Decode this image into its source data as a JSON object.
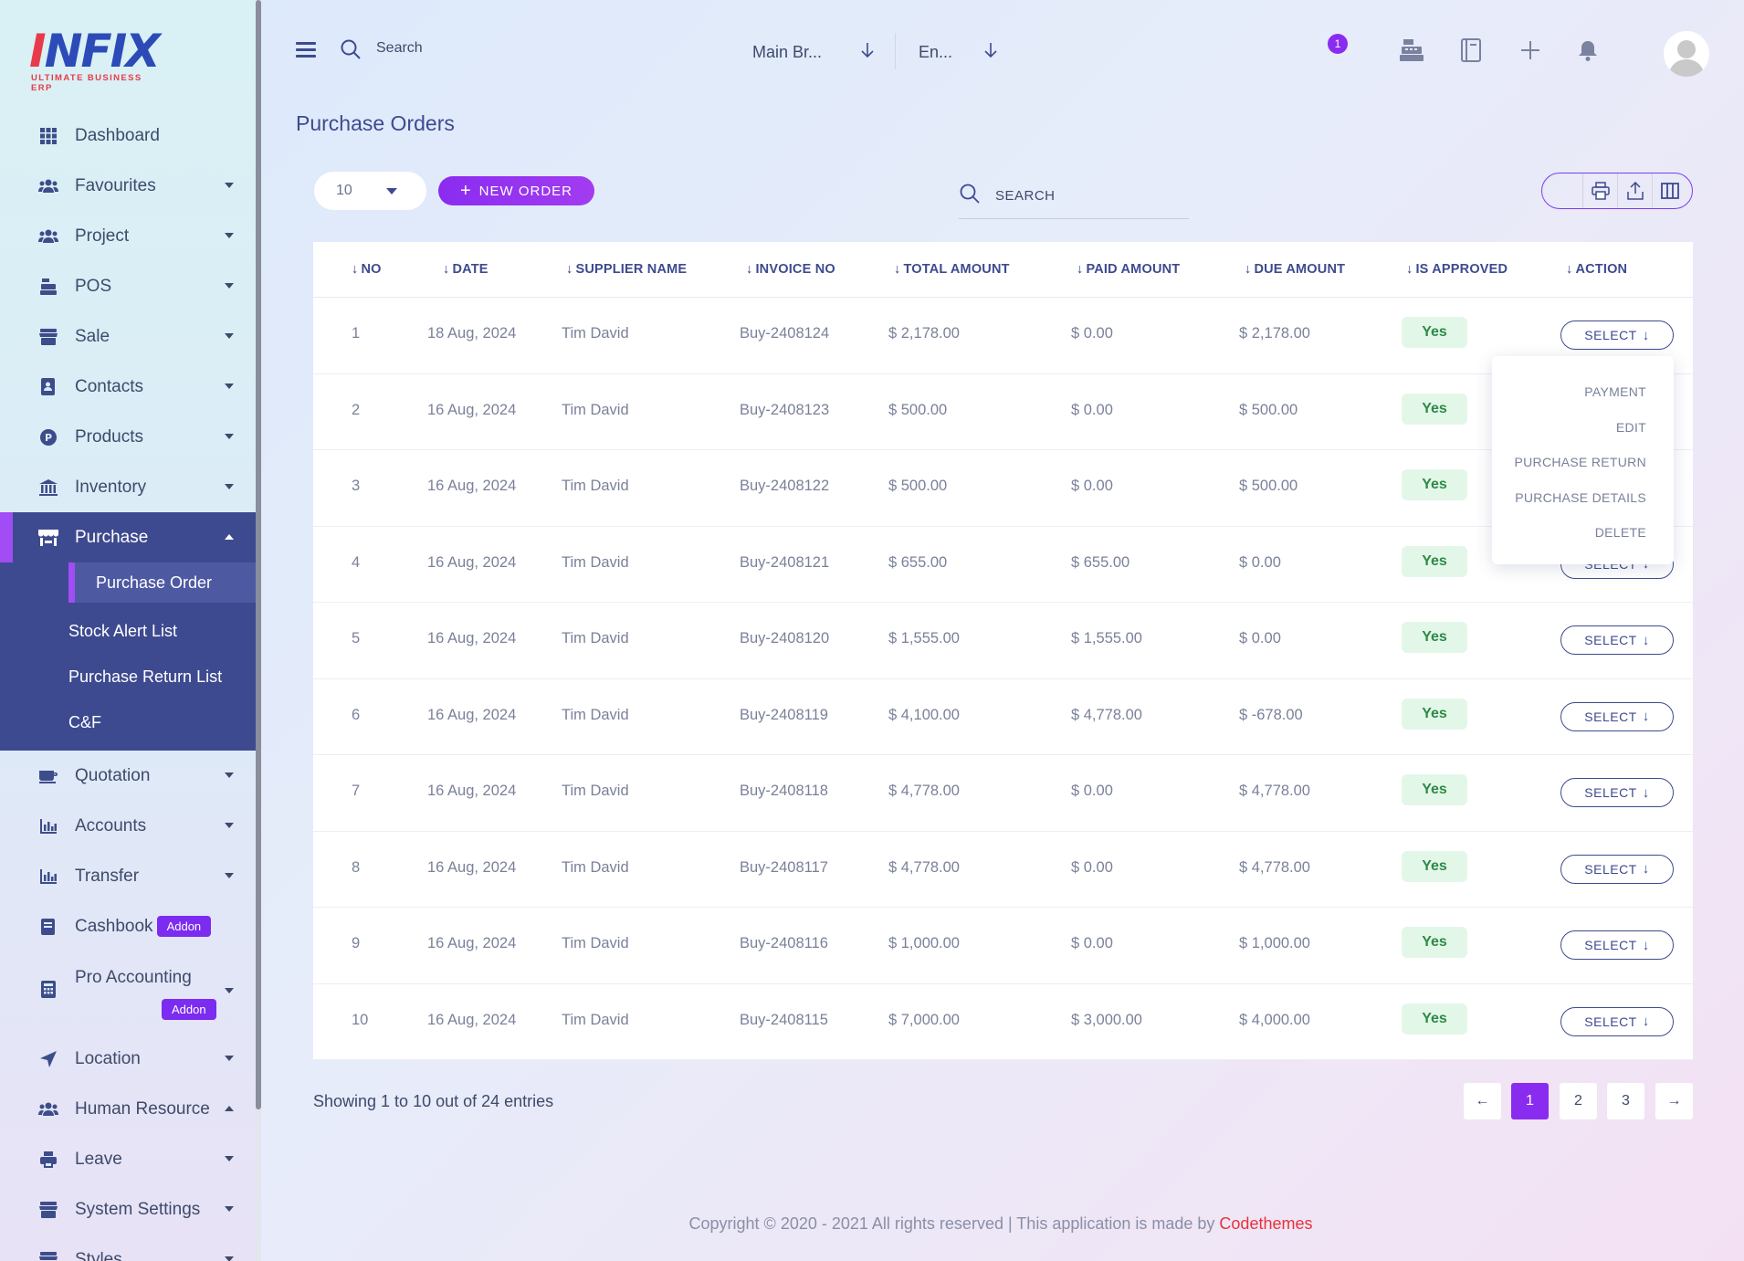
{
  "brand": {
    "logo_text_a": "I",
    "logo_text_b": "NFIX",
    "tagline": "ULTIMATE BUSINESS ERP"
  },
  "sidebar": {
    "items": [
      {
        "label": "Dashboard",
        "icon": "grid-icon"
      },
      {
        "label": "Favourites",
        "icon": "users-icon"
      },
      {
        "label": "Project",
        "icon": "users-icon"
      },
      {
        "label": "POS",
        "icon": "cash-register-icon"
      },
      {
        "label": "Sale",
        "icon": "store-icon"
      },
      {
        "label": "Contacts",
        "icon": "contact-book-icon"
      },
      {
        "label": "Products",
        "icon": "product-p-icon"
      },
      {
        "label": "Inventory",
        "icon": "warehouse-icon"
      },
      {
        "label": "Purchase",
        "icon": "shop-icon"
      },
      {
        "label": "Quotation",
        "icon": "quotation-icon"
      },
      {
        "label": "Accounts",
        "icon": "chart-icon"
      },
      {
        "label": "Transfer",
        "icon": "chart-icon"
      },
      {
        "label": "Cashbook",
        "icon": "book-icon",
        "badge": "Addon"
      },
      {
        "label": "Pro Accounting",
        "icon": "calculator-icon",
        "badge": "Addon"
      },
      {
        "label": "Location",
        "icon": "location-arrow-icon"
      },
      {
        "label": "Human Resource",
        "icon": "users-icon"
      },
      {
        "label": "Leave",
        "icon": "printer-icon"
      },
      {
        "label": "System Settings",
        "icon": "store-icon"
      },
      {
        "label": "Styles",
        "icon": "store-icon"
      }
    ],
    "purchase_sub": [
      "Purchase Order",
      "Stock Alert List",
      "Purchase Return List",
      "C&F"
    ]
  },
  "topbar": {
    "search_placeholder": "Search",
    "branch": "Main Br...",
    "language": "En...",
    "notification_count": "1"
  },
  "page": {
    "title": "Purchase Orders"
  },
  "toolbar": {
    "page_size": "10",
    "new_order_label": "NEW ORDER",
    "search_placeholder": "SEARCH"
  },
  "table": {
    "columns": [
      "NO",
      "DATE",
      "SUPPLIER NAME",
      "INVOICE NO",
      "TOTAL AMOUNT",
      "PAID AMOUNT",
      "DUE AMOUNT",
      "IS APPROVED",
      "ACTION"
    ],
    "select_label": "SELECT",
    "rows": [
      {
        "no": "1",
        "date": "18 Aug, 2024",
        "supplier": "Tim David",
        "invoice": "Buy-2408124",
        "total": "$ 2,178.00",
        "paid": "$ 0.00",
        "due": "$ 2,178.00",
        "approved": "Yes"
      },
      {
        "no": "2",
        "date": "16 Aug, 2024",
        "supplier": "Tim David",
        "invoice": "Buy-2408123",
        "total": "$ 500.00",
        "paid": "$ 0.00",
        "due": "$ 500.00",
        "approved": "Yes"
      },
      {
        "no": "3",
        "date": "16 Aug, 2024",
        "supplier": "Tim David",
        "invoice": "Buy-2408122",
        "total": "$ 500.00",
        "paid": "$ 0.00",
        "due": "$ 500.00",
        "approved": "Yes"
      },
      {
        "no": "4",
        "date": "16 Aug, 2024",
        "supplier": "Tim David",
        "invoice": "Buy-2408121",
        "total": "$ 655.00",
        "paid": "$ 655.00",
        "due": "$ 0.00",
        "approved": "Yes"
      },
      {
        "no": "5",
        "date": "16 Aug, 2024",
        "supplier": "Tim David",
        "invoice": "Buy-2408120",
        "total": "$ 1,555.00",
        "paid": "$ 1,555.00",
        "due": "$ 0.00",
        "approved": "Yes"
      },
      {
        "no": "6",
        "date": "16 Aug, 2024",
        "supplier": "Tim David",
        "invoice": "Buy-2408119",
        "total": "$ 4,100.00",
        "paid": "$ 4,778.00",
        "due": "$ -678.00",
        "approved": "Yes"
      },
      {
        "no": "7",
        "date": "16 Aug, 2024",
        "supplier": "Tim David",
        "invoice": "Buy-2408118",
        "total": "$ 4,778.00",
        "paid": "$ 0.00",
        "due": "$ 4,778.00",
        "approved": "Yes"
      },
      {
        "no": "8",
        "date": "16 Aug, 2024",
        "supplier": "Tim David",
        "invoice": "Buy-2408117",
        "total": "$ 4,778.00",
        "paid": "$ 0.00",
        "due": "$ 4,778.00",
        "approved": "Yes"
      },
      {
        "no": "9",
        "date": "16 Aug, 2024",
        "supplier": "Tim David",
        "invoice": "Buy-2408116",
        "total": "$ 1,000.00",
        "paid": "$ 0.00",
        "due": "$ 1,000.00",
        "approved": "Yes"
      },
      {
        "no": "10",
        "date": "16 Aug, 2024",
        "supplier": "Tim David",
        "invoice": "Buy-2408115",
        "total": "$ 7,000.00",
        "paid": "$ 3,000.00",
        "due": "$ 4,000.00",
        "approved": "Yes"
      }
    ]
  },
  "action_menu": [
    "PAYMENT",
    "EDIT",
    "PURCHASE RETURN",
    "PURCHASE DETAILS",
    "DELETE"
  ],
  "pagination": {
    "summary": "Showing 1 to 10 out of 24 entries",
    "prev": "←",
    "pages": [
      "1",
      "2",
      "3"
    ],
    "next": "→",
    "current": "1"
  },
  "footer": {
    "text": "Copyright © 2020 - 2021 All rights reserved | This application is made by ",
    "link": "Codethemes"
  },
  "colors": {
    "accent": "#8a2cf0",
    "nav_active": "#3e4a8f",
    "approved_bg": "#e3f7e8",
    "approved_text": "#2e8a48",
    "footer_link": "#e8323a"
  }
}
